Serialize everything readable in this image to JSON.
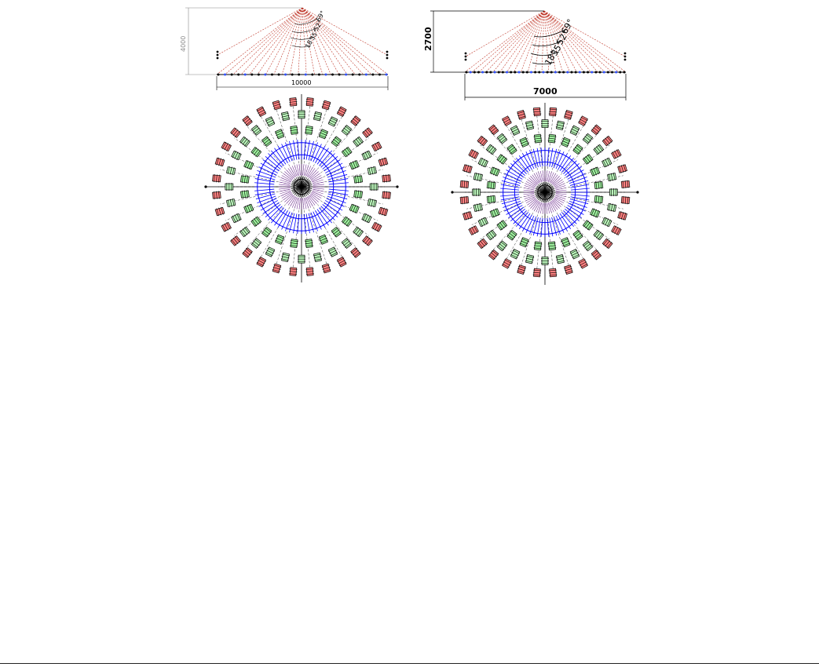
{
  "left_design": {
    "height_dim": "4000",
    "width_dim": "10000",
    "angle_labels": [
      "18°",
      "35°",
      "52°",
      "69°"
    ],
    "ring_colors": [
      "#000000",
      "#7a3a9a",
      "#0000ff",
      "#22aa22",
      "#ff2222"
    ]
  },
  "right_design": {
    "height_dim": "2700",
    "width_dim": "7000",
    "angle_labels": [
      "18°",
      "35°",
      "52°",
      "69°"
    ],
    "ring_colors": [
      "#000000",
      "#7a3a9a",
      "#0000ff",
      "#22aa22",
      "#ff2222"
    ]
  }
}
